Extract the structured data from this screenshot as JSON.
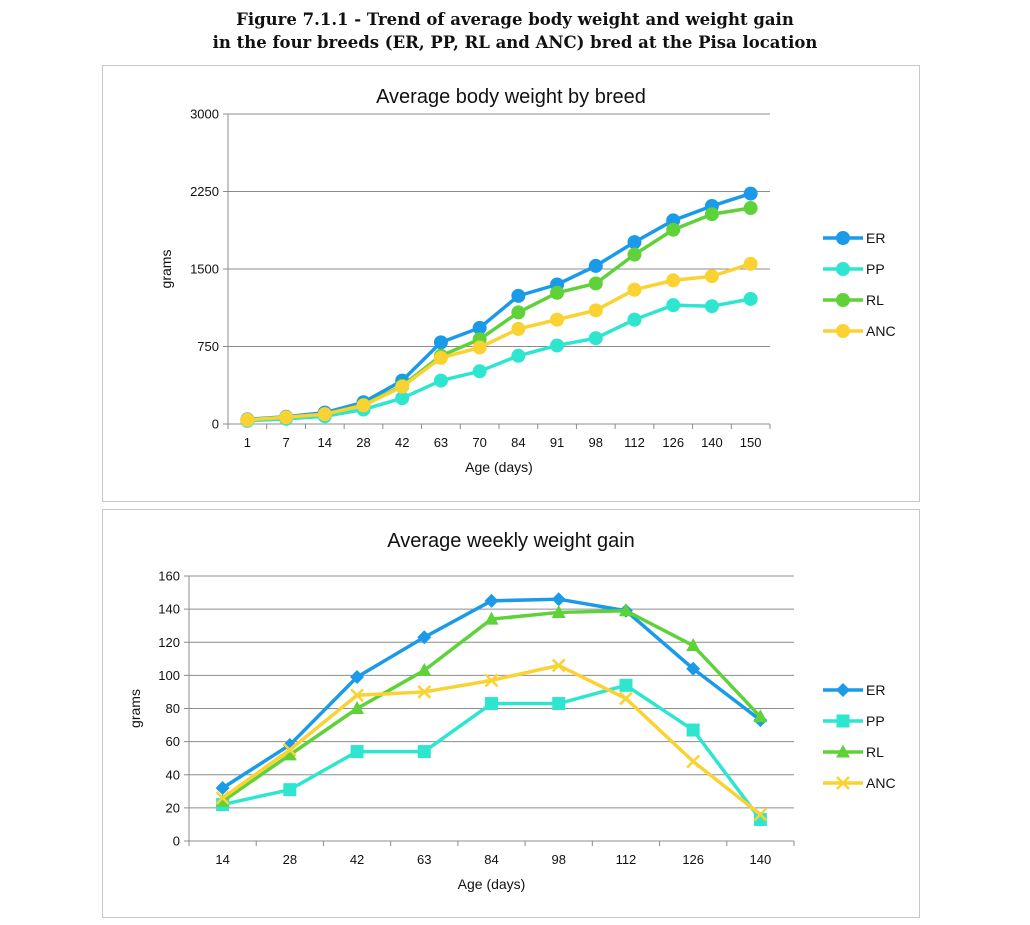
{
  "figure": {
    "title_line1": "Figure 7.1.1 - Trend of average body weight and weight gain",
    "title_line2": "in the four breeds (ER, PP, RL and ANC) bred at the Pisa location"
  },
  "colors": {
    "ER": "#1a9ae8",
    "PP": "#2ee6cf",
    "RL": "#5fd23a",
    "ANC": "#fad232"
  },
  "chart_data": [
    {
      "type": "line",
      "title": "Average body weight by breed",
      "xlabel": "Age (days)",
      "ylabel": "grams",
      "ylim": [
        0,
        3000
      ],
      "yticks": [
        0,
        750,
        1500,
        2250,
        3000
      ],
      "grid": true,
      "legend_position": "right",
      "marker": "circle",
      "categories": [
        "1",
        "7",
        "14",
        "28",
        "42",
        "63",
        "70",
        "84",
        "91",
        "98",
        "112",
        "126",
        "140",
        "150"
      ],
      "series": [
        {
          "name": "ER",
          "values": [
            45,
            70,
            110,
            210,
            420,
            790,
            930,
            1240,
            1350,
            1530,
            1760,
            1970,
            2110,
            2230
          ]
        },
        {
          "name": "PP",
          "values": [
            30,
            50,
            75,
            140,
            250,
            420,
            510,
            660,
            760,
            830,
            1010,
            1150,
            1140,
            1210
          ]
        },
        {
          "name": "RL",
          "values": [
            40,
            65,
            95,
            185,
            370,
            660,
            820,
            1080,
            1270,
            1360,
            1640,
            1880,
            2030,
            2090
          ]
        },
        {
          "name": "ANC",
          "values": [
            40,
            65,
            95,
            180,
            360,
            640,
            740,
            920,
            1010,
            1100,
            1300,
            1390,
            1430,
            1550
          ]
        }
      ]
    },
    {
      "type": "line",
      "title": "Average weekly weight gain",
      "xlabel": "Age (days)",
      "ylabel": "grams",
      "ylim": [
        0,
        160
      ],
      "yticks": [
        0,
        20,
        40,
        60,
        80,
        100,
        120,
        140,
        160
      ],
      "grid": true,
      "legend_position": "right",
      "categories": [
        "14",
        "28",
        "42",
        "63",
        "84",
        "98",
        "112",
        "126",
        "140"
      ],
      "series": [
        {
          "name": "ER",
          "marker": "diamond",
          "values": [
            32,
            58,
            99,
            123,
            145,
            146,
            139,
            104,
            73
          ]
        },
        {
          "name": "PP",
          "marker": "square",
          "values": [
            22,
            31,
            54,
            54,
            83,
            83,
            94,
            67,
            13
          ]
        },
        {
          "name": "RL",
          "marker": "triangle",
          "values": [
            24,
            52,
            80,
            103,
            134,
            138,
            139,
            118,
            75
          ]
        },
        {
          "name": "ANC",
          "marker": "x",
          "values": [
            26,
            55,
            88,
            90,
            97,
            106,
            86,
            48,
            16
          ]
        }
      ]
    }
  ]
}
